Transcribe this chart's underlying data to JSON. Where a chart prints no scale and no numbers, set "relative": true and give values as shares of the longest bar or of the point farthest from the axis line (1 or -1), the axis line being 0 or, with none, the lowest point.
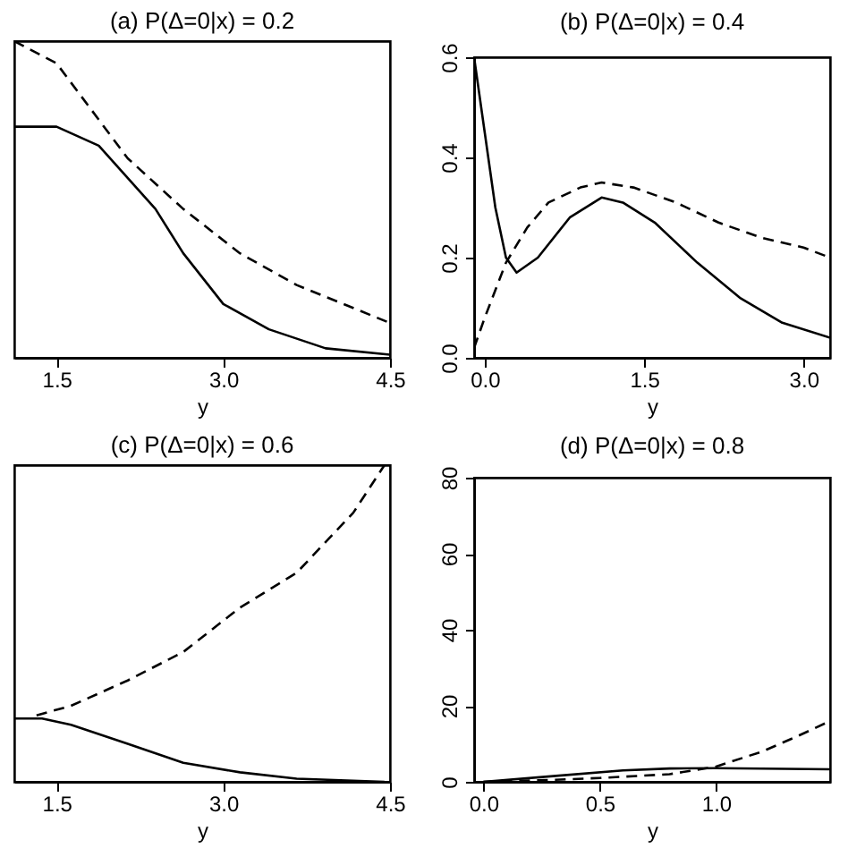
{
  "chart_data": [
    {
      "type": "line",
      "title": "(a) P(Δ=0|x) = 0.2",
      "xlabel": "y",
      "relative": true,
      "tick_labels": "x",
      "grid": false,
      "xlim": [
        1.12,
        4.5
      ],
      "xticks": [
        1.5,
        {
          "value": 3,
          "label": "3.0"
        },
        4.5
      ],
      "series": [
        {
          "color": "#000000",
          "line_style": "solid",
          "x": [
            1.12,
            1.5,
            1.88,
            2.39,
            2.64,
            3.0,
            3.41,
            3.92,
            4.5
          ],
          "values": [
            0.73,
            0.73,
            0.67,
            0.47,
            0.33,
            0.17,
            0.09,
            0.03,
            0.01
          ]
        },
        {
          "color": "#000000",
          "line_style": "dashed",
          "x": [
            1.12,
            1.5,
            2.14,
            2.64,
            3.15,
            3.66,
            4.5
          ],
          "values": [
            1,
            0.93,
            0.63,
            0.47,
            0.33,
            0.23,
            0.11
          ]
        }
      ]
    },
    {
      "type": "line",
      "title": "(b) P(Δ=0|x) = 0.4",
      "xlabel": "y",
      "grid": false,
      "xlim": [
        -0.1,
        3.25
      ],
      "xticks": [
        {
          "value": 0,
          "label": "0.0"
        },
        1.5,
        {
          "value": 3,
          "label": "3.0"
        }
      ],
      "ylim": [
        0,
        0.6
      ],
      "yticks": [
        {
          "value": 0,
          "label": "0.0"
        },
        0.2,
        0.4,
        0.6
      ],
      "series": [
        {
          "color": "#000000",
          "line_style": "solid",
          "x": [
            -0.1,
            0.0,
            0.1,
            0.2,
            0.3,
            0.5,
            0.8,
            1.1,
            1.3,
            1.6,
            2.0,
            2.4,
            2.8,
            3.25
          ],
          "values": [
            0.6,
            0.45,
            0.3,
            0.2,
            0.17,
            0.2,
            0.28,
            0.32,
            0.31,
            0.27,
            0.19,
            0.12,
            0.07,
            0.04
          ]
        },
        {
          "color": "#000000",
          "line_style": "dashed",
          "x": [
            -0.1,
            0.0,
            0.2,
            0.4,
            0.6,
            0.9,
            1.1,
            1.4,
            1.8,
            2.2,
            2.6,
            3.0,
            3.25
          ],
          "values": [
            0.02,
            0.08,
            0.19,
            0.26,
            0.31,
            0.34,
            0.35,
            0.34,
            0.31,
            0.27,
            0.24,
            0.22,
            0.2
          ]
        }
      ]
    },
    {
      "type": "line",
      "title": "(c) P(Δ=0|x) = 0.6",
      "xlabel": "y",
      "relative": true,
      "tick_labels": "x",
      "grid": false,
      "xlim": [
        1.12,
        4.5
      ],
      "xticks": [
        1.5,
        {
          "value": 3,
          "label": "3.0"
        },
        4.5
      ],
      "series": [
        {
          "color": "#000000",
          "line_style": "solid",
          "x": [
            1.12,
            1.37,
            1.63,
            2.14,
            2.64,
            3.15,
            3.66,
            4.45
          ],
          "values": [
            0.2,
            0.2,
            0.18,
            0.12,
            0.06,
            0.03,
            0.01,
            0
          ]
        },
        {
          "color": "#000000",
          "line_style": "dashed",
          "x": [
            1.32,
            1.63,
            2.14,
            2.64,
            3.15,
            3.66,
            4.17,
            4.45
          ],
          "values": [
            0.21,
            0.24,
            0.32,
            0.41,
            0.55,
            0.66,
            0.85,
            1
          ]
        }
      ]
    },
    {
      "type": "line",
      "title": "(d) P(Δ=0|x) = 0.8",
      "xlabel": "y",
      "grid": false,
      "xlim": [
        -0.04,
        1.49
      ],
      "xticks": [
        {
          "value": 0,
          "label": "0.0"
        },
        0.5,
        {
          "value": 1,
          "label": "1.0"
        }
      ],
      "ylim": [
        0,
        80
      ],
      "yticks": [
        0,
        20,
        40,
        60,
        80
      ],
      "series": [
        {
          "color": "#000000",
          "line_style": "solid",
          "x": [
            0,
            0.3,
            0.6,
            0.8,
            1.0,
            1.49
          ],
          "values": [
            0,
            1.5,
            3,
            3.5,
            3.6,
            3.3
          ]
        },
        {
          "color": "#000000",
          "line_style": "dashed",
          "x": [
            0,
            0.3,
            0.5,
            0.8,
            1.0,
            1.2,
            1.35,
            1.49
          ],
          "values": [
            0,
            0.5,
            1,
            2,
            4,
            8,
            12,
            16
          ]
        }
      ]
    }
  ]
}
